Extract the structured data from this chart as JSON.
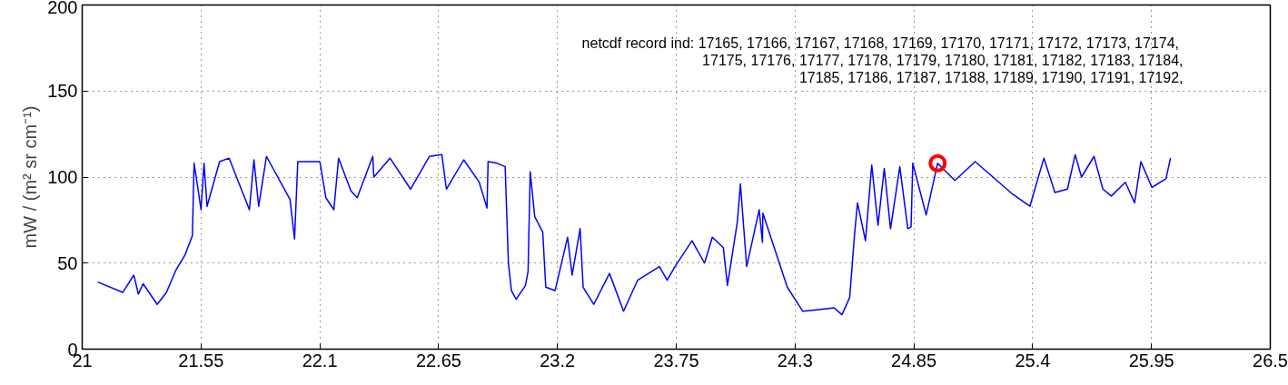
{
  "chart_data": {
    "type": "line",
    "ylabel": "mW / (m² sr cm⁻¹)",
    "annotations": [
      "netcdf record ind:  17165, 17166, 17167, 17168, 17169, 17170, 17171, 17172, 17173, 17174,",
      "17175, 17176, 17177, 17178, 17179, 17180, 17181, 17182, 17183, 17184,",
      "17185, 17186, 17187, 17188, 17189, 17190, 17191, 17192,"
    ],
    "xlim": [
      21,
      26.5
    ],
    "xticks": [
      21,
      21.55,
      22.1,
      22.65,
      23.2,
      23.75,
      24.3,
      24.85,
      25.4,
      25.95,
      26.5
    ],
    "ylim": [
      0,
      200
    ],
    "yticks": [
      0,
      50,
      100,
      150,
      200
    ],
    "grid": true,
    "series": [
      {
        "color": "#0000ff",
        "x": [
          21.072,
          21.188,
          21.239,
          21.26,
          21.282,
          21.347,
          21.39,
          21.434,
          21.477,
          21.51,
          21.518,
          21.535,
          21.55,
          21.564,
          21.578,
          21.636,
          21.68,
          21.774,
          21.795,
          21.817,
          21.853,
          21.962,
          21.983,
          21.998,
          22.1,
          22.128,
          22.165,
          22.187,
          22.244,
          22.273,
          22.345,
          22.35,
          22.425,
          22.52,
          22.607,
          22.665,
          22.686,
          22.766,
          22.838,
          22.874,
          22.879,
          22.922,
          22.958,
          22.973,
          22.987,
          23.009,
          23.052,
          23.064,
          23.074,
          23.095,
          23.132,
          23.146,
          23.189,
          23.247,
          23.268,
          23.305,
          23.319,
          23.368,
          23.441,
          23.506,
          23.571,
          23.672,
          23.708,
          23.744,
          23.823,
          23.881,
          23.917,
          23.968,
          23.987,
          24.033,
          24.047,
          24.076,
          24.134,
          24.149,
          24.151,
          24.264,
          24.336,
          24.409,
          24.481,
          24.517,
          24.553,
          24.575,
          24.589,
          24.626,
          24.655,
          24.684,
          24.713,
          24.742,
          24.785,
          24.822,
          24.837,
          24.845,
          24.907,
          24.96,
          25.04,
          25.134,
          25.308,
          25.387,
          25.452,
          25.503,
          25.561,
          25.597,
          25.626,
          25.684,
          25.725,
          25.764,
          25.829,
          25.872,
          25.901,
          25.952,
          26.017,
          26.038
        ],
        "values": [
          39,
          33,
          43,
          32,
          38,
          26,
          33,
          46,
          55,
          66,
          108,
          94,
          81,
          108,
          83,
          109,
          111,
          81,
          110,
          83,
          112,
          87,
          64,
          109,
          109,
          88,
          81,
          111,
          92,
          88,
          112,
          100,
          111,
          93,
          112,
          113,
          93,
          110,
          97,
          82,
          109,
          108,
          106,
          50,
          34,
          29,
          37,
          45,
          103,
          77,
          68,
          36,
          34,
          65,
          43,
          70,
          36,
          26,
          44,
          22,
          40,
          48,
          40,
          48,
          63,
          50,
          65,
          59,
          37,
          74,
          96,
          48,
          81,
          62,
          79,
          36,
          22,
          23,
          24,
          20,
          30,
          66,
          85,
          63,
          107,
          72,
          105,
          70,
          106,
          70,
          71,
          108,
          78,
          108,
          98,
          109,
          90,
          83,
          111,
          91,
          93,
          113,
          100,
          112,
          93,
          89,
          97,
          85,
          109,
          94,
          99,
          111
        ]
      },
      {
        "type": "scatter",
        "color": "#ff0000",
        "marker": "circle",
        "x": [
          24.96
        ],
        "values": [
          108
        ]
      }
    ]
  }
}
